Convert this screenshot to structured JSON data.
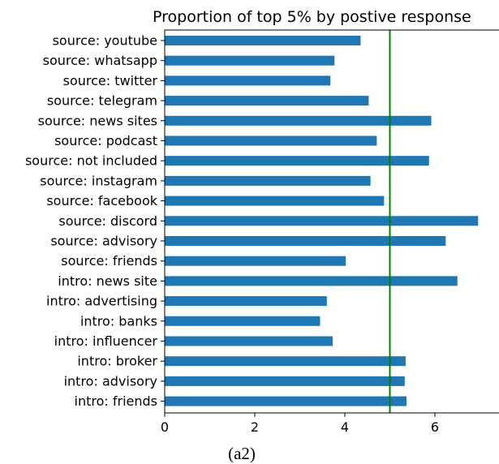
{
  "caption": "(a2)",
  "chart_data": {
    "type": "bar",
    "orientation": "horizontal",
    "title": "Proportion of top 5% by postive response",
    "categories": [
      "source: youtube",
      "source: whatsapp",
      "source: twitter",
      "source: telegram",
      "source: news sites",
      "source: podcast",
      "source: not included",
      "source: instagram",
      "source: facebook",
      "source: discord",
      "source: advisory",
      "source: friends",
      "intro: news site",
      "intro: advertising",
      "intro: banks",
      "intro: influencer",
      "intro: broker",
      "intro: advisory",
      "intro: friends"
    ],
    "values": [
      4.35,
      3.77,
      3.68,
      4.53,
      5.92,
      4.71,
      5.87,
      4.57,
      4.87,
      6.96,
      6.24,
      4.02,
      6.5,
      3.6,
      3.45,
      3.73,
      5.35,
      5.33,
      5.37
    ],
    "xlim": [
      0,
      7.2
    ],
    "xticks": [
      0,
      2,
      4,
      6
    ],
    "reference_line": {
      "x": 5,
      "color": "#008000"
    },
    "bar_color": "#1f77b4",
    "grid": false,
    "legend": "none"
  }
}
